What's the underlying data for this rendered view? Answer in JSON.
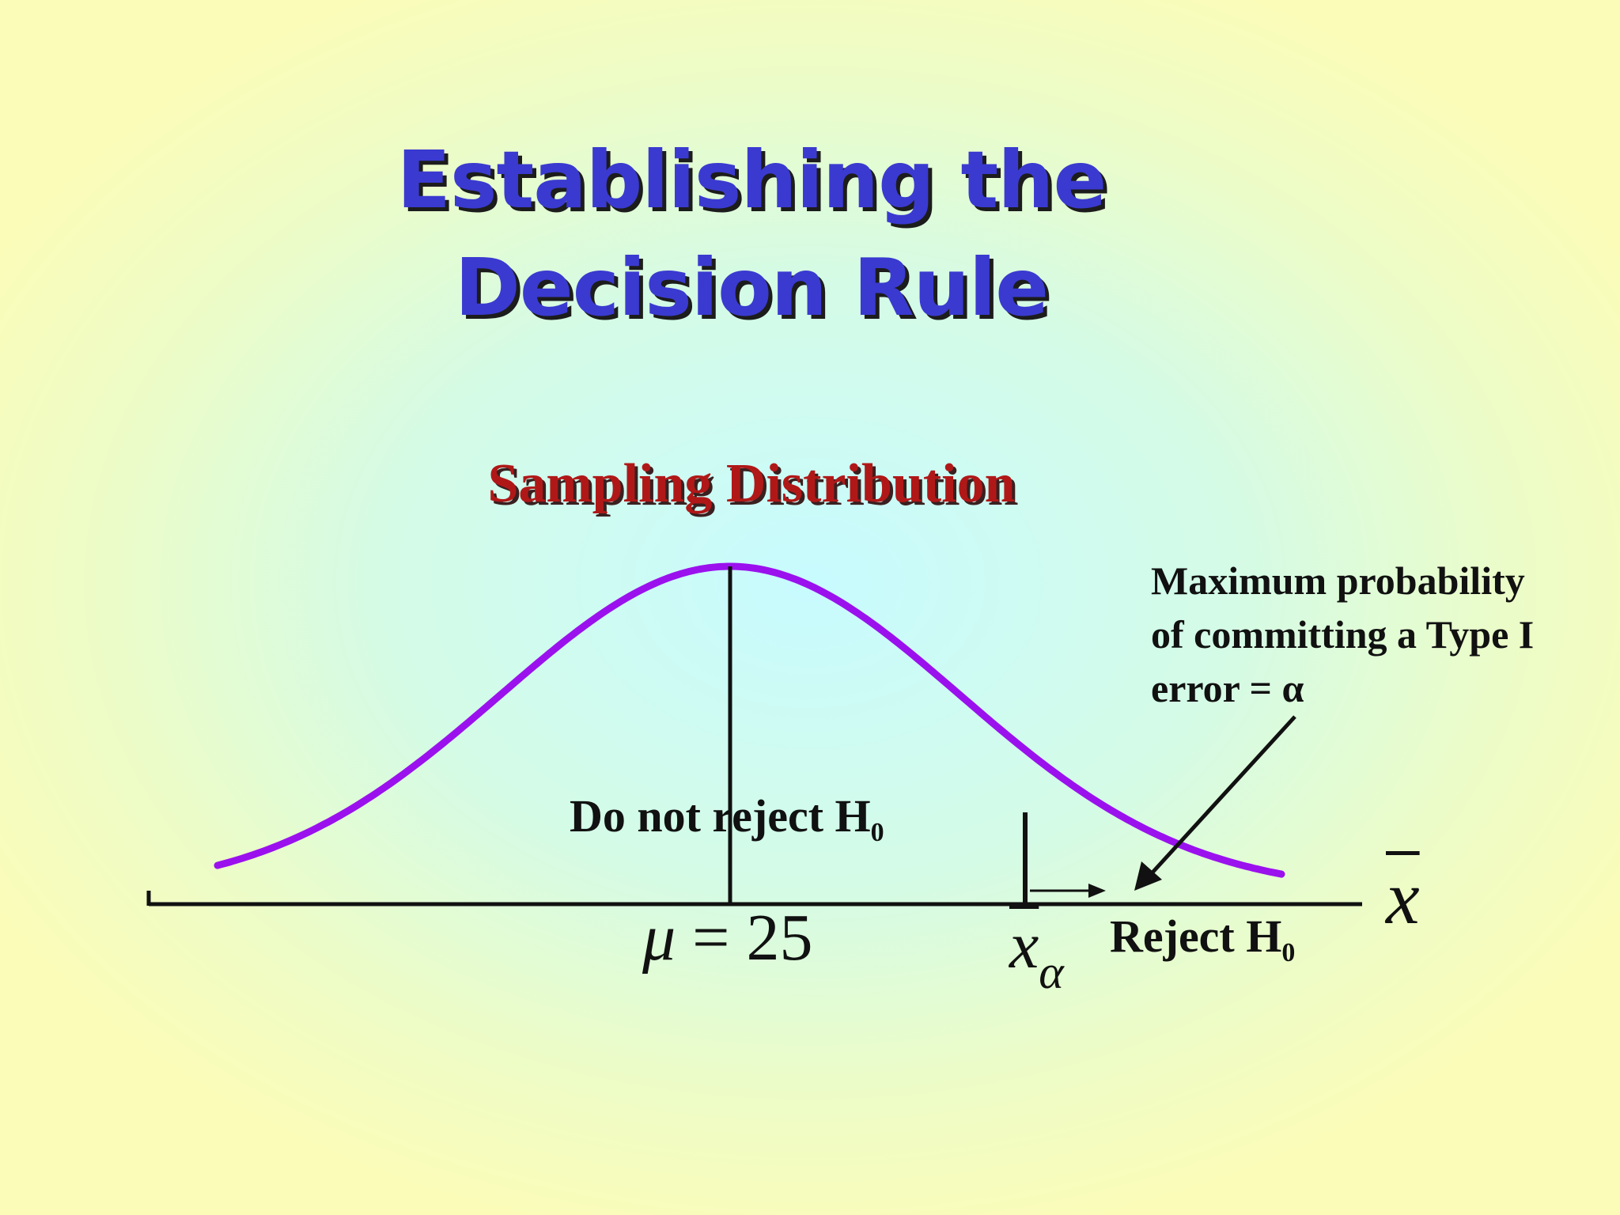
{
  "slide": {
    "title_line1": "Establishing the",
    "title_line2": "Decision Rule",
    "subtitle": "Sampling Distribution"
  },
  "annotation": {
    "line1": "Maximum probability",
    "line2": "of committing a Type I",
    "line3": "error = α"
  },
  "regions": {
    "do_not_reject": "Do not reject H",
    "do_not_reject_sub": "0",
    "reject": "Reject H",
    "reject_sub": "0"
  },
  "axis": {
    "mean_symbol": "μ",
    "mean_equals": " = 25",
    "critical_symbol": "x",
    "critical_sub": "α",
    "variable_symbol": "x"
  },
  "colors": {
    "title": "#3a3ad0",
    "subtitle": "#b01818",
    "curve": "#9b11ee",
    "ink": "#111111"
  }
}
